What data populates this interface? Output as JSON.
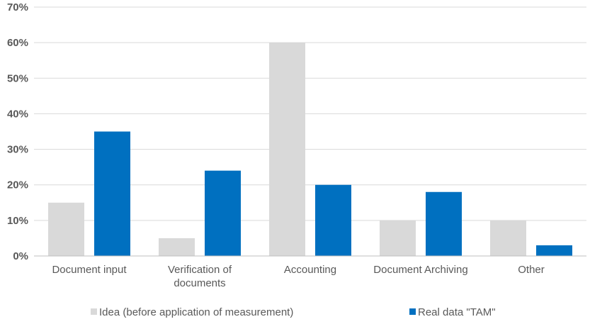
{
  "chart_data": {
    "type": "bar",
    "categories": [
      "Document input",
      "Verification of documents",
      "Accounting",
      "Document Archiving",
      "Other"
    ],
    "category_label_lines": [
      [
        "Document input"
      ],
      [
        "Verification of",
        "documents"
      ],
      [
        "Accounting"
      ],
      [
        "Document Archiving"
      ],
      [
        "Other"
      ]
    ],
    "series": [
      {
        "name": "Idea (before application of measurement)",
        "color": "#d9d9d9",
        "values": [
          15,
          5,
          60,
          10,
          10
        ]
      },
      {
        "name": "Real data \"TAM\"",
        "color": "#0070c0",
        "values": [
          35,
          24,
          20,
          18,
          3
        ]
      }
    ],
    "ylim": [
      0,
      70
    ],
    "yticks": [
      0,
      10,
      20,
      30,
      40,
      50,
      60,
      70
    ],
    "ytick_labels": [
      "0%",
      "10%",
      "20%",
      "30%",
      "40%",
      "50%",
      "60%",
      "70%"
    ],
    "grid": true,
    "legend_position": "bottom"
  }
}
